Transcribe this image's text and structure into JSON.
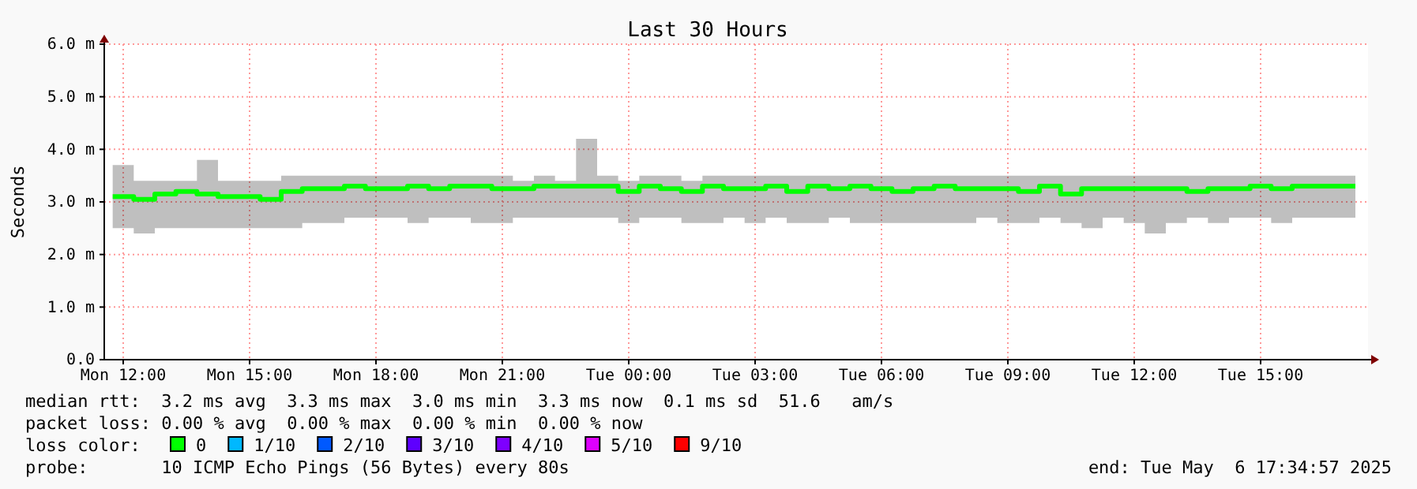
{
  "chart_data": {
    "type": "step",
    "title": "Last 30 Hours",
    "ylabel": "Seconds",
    "x": [
      "2025-05-05T11:45",
      "2025-05-05T12:15",
      "2025-05-05T12:45",
      "2025-05-05T13:15",
      "2025-05-05T13:45",
      "2025-05-05T14:15",
      "2025-05-05T14:45",
      "2025-05-05T15:15",
      "2025-05-05T15:45",
      "2025-05-05T16:15",
      "2025-05-05T16:45",
      "2025-05-05T17:15",
      "2025-05-05T17:45",
      "2025-05-05T18:15",
      "2025-05-05T18:45",
      "2025-05-05T19:15",
      "2025-05-05T19:45",
      "2025-05-05T20:15",
      "2025-05-05T20:45",
      "2025-05-05T21:15",
      "2025-05-05T21:45",
      "2025-05-05T22:15",
      "2025-05-05T22:45",
      "2025-05-05T23:15",
      "2025-05-05T23:45",
      "2025-05-06T00:15",
      "2025-05-06T00:45",
      "2025-05-06T01:15",
      "2025-05-06T01:45",
      "2025-05-06T02:15",
      "2025-05-06T02:45",
      "2025-05-06T03:15",
      "2025-05-06T03:45",
      "2025-05-06T04:15",
      "2025-05-06T04:45",
      "2025-05-06T05:15",
      "2025-05-06T05:45",
      "2025-05-06T06:15",
      "2025-05-06T06:45",
      "2025-05-06T07:15",
      "2025-05-06T07:45",
      "2025-05-06T08:15",
      "2025-05-06T08:45",
      "2025-05-06T09:15",
      "2025-05-06T09:45",
      "2025-05-06T10:15",
      "2025-05-06T10:45",
      "2025-05-06T11:15",
      "2025-05-06T11:45",
      "2025-05-06T12:15",
      "2025-05-06T12:45",
      "2025-05-06T13:15",
      "2025-05-06T13:45",
      "2025-05-06T14:15",
      "2025-05-06T14:45",
      "2025-05-06T15:15",
      "2025-05-06T15:45",
      "2025-05-06T16:15",
      "2025-05-06T16:45",
      "2025-05-06T17:15"
    ],
    "series": [
      {
        "color": "#00ff00",
        "values": [
          3.1,
          3.05,
          3.15,
          3.2,
          3.15,
          3.1,
          3.1,
          3.05,
          3.2,
          3.25,
          3.25,
          3.3,
          3.25,
          3.25,
          3.3,
          3.25,
          3.3,
          3.3,
          3.25,
          3.25,
          3.3,
          3.3,
          3.3,
          3.3,
          3.2,
          3.3,
          3.25,
          3.2,
          3.3,
          3.25,
          3.25,
          3.3,
          3.2,
          3.3,
          3.25,
          3.3,
          3.25,
          3.2,
          3.25,
          3.3,
          3.25,
          3.25,
          3.25,
          3.2,
          3.3,
          3.15,
          3.25,
          3.25,
          3.25,
          3.25,
          3.25,
          3.2,
          3.25,
          3.25,
          3.3,
          3.25,
          3.3,
          3.3,
          3.3,
          3.3
        ],
        "lower": [
          2.5,
          2.4,
          2.5,
          2.5,
          2.5,
          2.5,
          2.5,
          2.5,
          2.5,
          2.6,
          2.6,
          2.7,
          2.7,
          2.7,
          2.6,
          2.7,
          2.7,
          2.6,
          2.6,
          2.7,
          2.7,
          2.7,
          2.7,
          2.7,
          2.6,
          2.7,
          2.7,
          2.6,
          2.6,
          2.7,
          2.6,
          2.7,
          2.6,
          2.6,
          2.7,
          2.6,
          2.6,
          2.6,
          2.6,
          2.6,
          2.6,
          2.7,
          2.6,
          2.6,
          2.7,
          2.6,
          2.5,
          2.7,
          2.6,
          2.4,
          2.6,
          2.7,
          2.6,
          2.7,
          2.7,
          2.6,
          2.7,
          2.7,
          2.7,
          2.7
        ],
        "upper": [
          3.7,
          3.4,
          3.4,
          3.4,
          3.8,
          3.4,
          3.4,
          3.4,
          3.5,
          3.5,
          3.5,
          3.5,
          3.5,
          3.5,
          3.5,
          3.5,
          3.5,
          3.5,
          3.5,
          3.4,
          3.5,
          3.4,
          4.2,
          3.5,
          3.4,
          3.5,
          3.5,
          3.4,
          3.5,
          3.5,
          3.5,
          3.5,
          3.5,
          3.5,
          3.5,
          3.5,
          3.5,
          3.5,
          3.5,
          3.5,
          3.5,
          3.5,
          3.5,
          3.5,
          3.5,
          3.5,
          3.5,
          3.5,
          3.5,
          3.5,
          3.5,
          3.5,
          3.5,
          3.5,
          3.5,
          3.5,
          3.5,
          3.5,
          3.5,
          3.5
        ]
      }
    ],
    "xlim": [
      "2025-05-05T11:33",
      "2025-05-06T17:33"
    ],
    "xticks": [
      {
        "value": "2025-05-05T12:00",
        "label": "Mon 12:00"
      },
      {
        "value": "2025-05-05T15:00",
        "label": "Mon 15:00"
      },
      {
        "value": "2025-05-05T18:00",
        "label": "Mon 18:00"
      },
      {
        "value": "2025-05-05T21:00",
        "label": "Mon 21:00"
      },
      {
        "value": "2025-05-06T00:00",
        "label": "Tue 00:00"
      },
      {
        "value": "2025-05-06T03:00",
        "label": "Tue 03:00"
      },
      {
        "value": "2025-05-06T06:00",
        "label": "Tue 06:00"
      },
      {
        "value": "2025-05-06T09:00",
        "label": "Tue 09:00"
      },
      {
        "value": "2025-05-06T12:00",
        "label": "Tue 12:00"
      },
      {
        "value": "2025-05-06T15:00",
        "label": "Tue 15:00"
      }
    ],
    "ylim": [
      0,
      6
    ],
    "yticks": [
      {
        "value": 0,
        "label": "0.0"
      },
      {
        "value": 1,
        "label": "1.0 m"
      },
      {
        "value": 2,
        "label": "2.0 m"
      },
      {
        "value": 3,
        "label": "3.0 m"
      },
      {
        "value": 4,
        "label": "4.0 m"
      },
      {
        "value": 5,
        "label": "5.0 m"
      },
      {
        "value": 6,
        "label": "6.0 m"
      }
    ],
    "grid": true,
    "annotations": [
      "median rtt:  3.2 ms avg  3.3 ms max  3.0 ms min  3.3 ms now  0.1 ms sd  51.6   am/s",
      "packet loss: 0.00 % avg  0.00 % max  0.00 % min  0.00 % now",
      "loss color:",
      "0",
      "1/10",
      "2/10",
      "3/10",
      "4/10",
      "5/10",
      "9/10",
      "probe:       10 ICMP Echo Pings (56 Bytes) every 80s",
      "end: Tue May  6 17:34:57 2025"
    ]
  }
}
